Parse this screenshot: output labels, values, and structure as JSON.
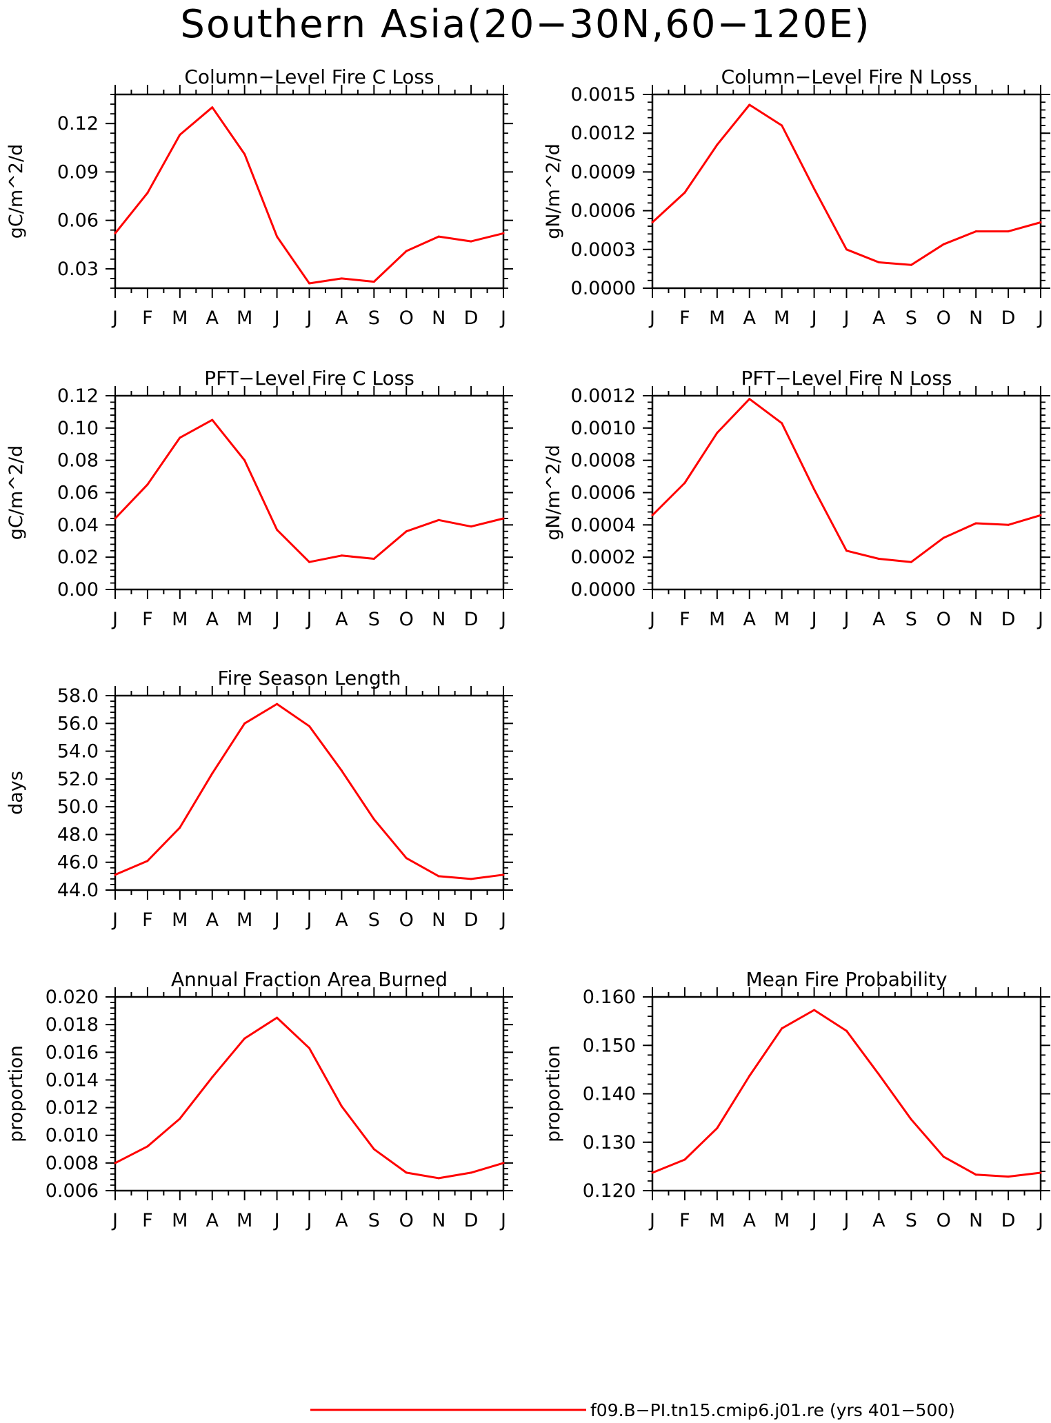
{
  "page_title": "Southern Asia(20−30N,60−120E)",
  "line_color": "#ff0000",
  "legend": {
    "label": "f09.B−PI.tn15.cmip6.j01.re (yrs 401−500)"
  },
  "chart_data": [
    {
      "id": "column-c",
      "type": "line",
      "title": "Column−Level Fire C Loss",
      "ylabel": "gC/m^2/d",
      "categories": [
        "J",
        "F",
        "M",
        "A",
        "M",
        "J",
        "J",
        "A",
        "S",
        "O",
        "N",
        "D",
        "J"
      ],
      "ylim": [
        0.018,
        0.138
      ],
      "yticks": [
        "0.03",
        "0.06",
        "0.09",
        "0.12"
      ],
      "series": [
        {
          "values": [
            0.052,
            0.077,
            0.113,
            0.13,
            0.101,
            0.05,
            0.021,
            0.024,
            0.022,
            0.041,
            0.05,
            0.047,
            0.052
          ]
        }
      ]
    },
    {
      "id": "column-n",
      "type": "line",
      "title": "Column−Level Fire N Loss",
      "ylabel": "gN/m^2/d",
      "categories": [
        "J",
        "F",
        "M",
        "A",
        "M",
        "J",
        "J",
        "A",
        "S",
        "O",
        "N",
        "D",
        "J"
      ],
      "ylim": [
        0.0,
        0.0015
      ],
      "yticks": [
        "0.0000",
        "0.0003",
        "0.0006",
        "0.0009",
        "0.0012",
        "0.0015"
      ],
      "series": [
        {
          "values": [
            0.00051,
            0.00074,
            0.00111,
            0.00142,
            0.00126,
            0.00077,
            0.0003,
            0.0002,
            0.00018,
            0.00034,
            0.00044,
            0.00044,
            0.00051
          ]
        }
      ]
    },
    {
      "id": "pft-c",
      "type": "line",
      "title": "PFT−Level Fire C Loss",
      "ylabel": "gC/m^2/d",
      "categories": [
        "J",
        "F",
        "M",
        "A",
        "M",
        "J",
        "J",
        "A",
        "S",
        "O",
        "N",
        "D",
        "J"
      ],
      "ylim": [
        0.0,
        0.12
      ],
      "yticks": [
        "0.00",
        "0.02",
        "0.04",
        "0.06",
        "0.08",
        "0.10",
        "0.12"
      ],
      "series": [
        {
          "values": [
            0.044,
            0.065,
            0.094,
            0.105,
            0.08,
            0.037,
            0.017,
            0.021,
            0.019,
            0.036,
            0.043,
            0.039,
            0.044
          ]
        }
      ]
    },
    {
      "id": "pft-n",
      "type": "line",
      "title": "PFT−Level Fire N Loss",
      "ylabel": "gN/m^2/d",
      "categories": [
        "J",
        "F",
        "M",
        "A",
        "M",
        "J",
        "J",
        "A",
        "S",
        "O",
        "N",
        "D",
        "J"
      ],
      "ylim": [
        0.0,
        0.0012
      ],
      "yticks": [
        "0.0000",
        "0.0002",
        "0.0004",
        "0.0006",
        "0.0008",
        "0.0010",
        "0.0012"
      ],
      "series": [
        {
          "values": [
            0.00046,
            0.00066,
            0.00097,
            0.00118,
            0.00103,
            0.00062,
            0.00024,
            0.00019,
            0.00017,
            0.00032,
            0.00041,
            0.0004,
            0.00046
          ]
        }
      ]
    },
    {
      "id": "season",
      "type": "line",
      "title": "Fire Season Length",
      "ylabel": "days",
      "categories": [
        "J",
        "F",
        "M",
        "A",
        "M",
        "J",
        "J",
        "A",
        "S",
        "O",
        "N",
        "D",
        "J"
      ],
      "ylim": [
        44.0,
        58.0
      ],
      "yticks": [
        "44.0",
        "46.0",
        "48.0",
        "50.0",
        "52.0",
        "54.0",
        "56.0",
        "58.0"
      ],
      "series": [
        {
          "values": [
            45.1,
            46.1,
            48.5,
            52.4,
            56.0,
            57.4,
            55.8,
            52.6,
            49.1,
            46.3,
            45.0,
            44.8,
            45.1
          ]
        }
      ]
    },
    {
      "id": "burned",
      "type": "line",
      "title": "Annual Fraction Area Burned",
      "ylabel": "proportion",
      "categories": [
        "J",
        "F",
        "M",
        "A",
        "M",
        "J",
        "J",
        "A",
        "S",
        "O",
        "N",
        "D",
        "J"
      ],
      "ylim": [
        0.006,
        0.02
      ],
      "yticks": [
        "0.006",
        "0.008",
        "0.010",
        "0.012",
        "0.014",
        "0.016",
        "0.018",
        "0.020"
      ],
      "series": [
        {
          "values": [
            0.008,
            0.0092,
            0.0112,
            0.0142,
            0.017,
            0.0185,
            0.0163,
            0.0121,
            0.009,
            0.0073,
            0.0069,
            0.0073,
            0.008
          ]
        }
      ]
    },
    {
      "id": "probability",
      "type": "line",
      "title": "Mean Fire Probability",
      "ylabel": "proportion",
      "categories": [
        "J",
        "F",
        "M",
        "A",
        "M",
        "J",
        "J",
        "A",
        "S",
        "O",
        "N",
        "D",
        "J"
      ],
      "ylim": [
        0.12,
        0.16
      ],
      "yticks": [
        "0.120",
        "0.130",
        "0.140",
        "0.150",
        "0.160"
      ],
      "series": [
        {
          "values": [
            0.1237,
            0.1264,
            0.1329,
            0.1437,
            0.1535,
            0.1573,
            0.153,
            0.144,
            0.1347,
            0.127,
            0.1233,
            0.1229,
            0.1237
          ]
        }
      ]
    }
  ]
}
